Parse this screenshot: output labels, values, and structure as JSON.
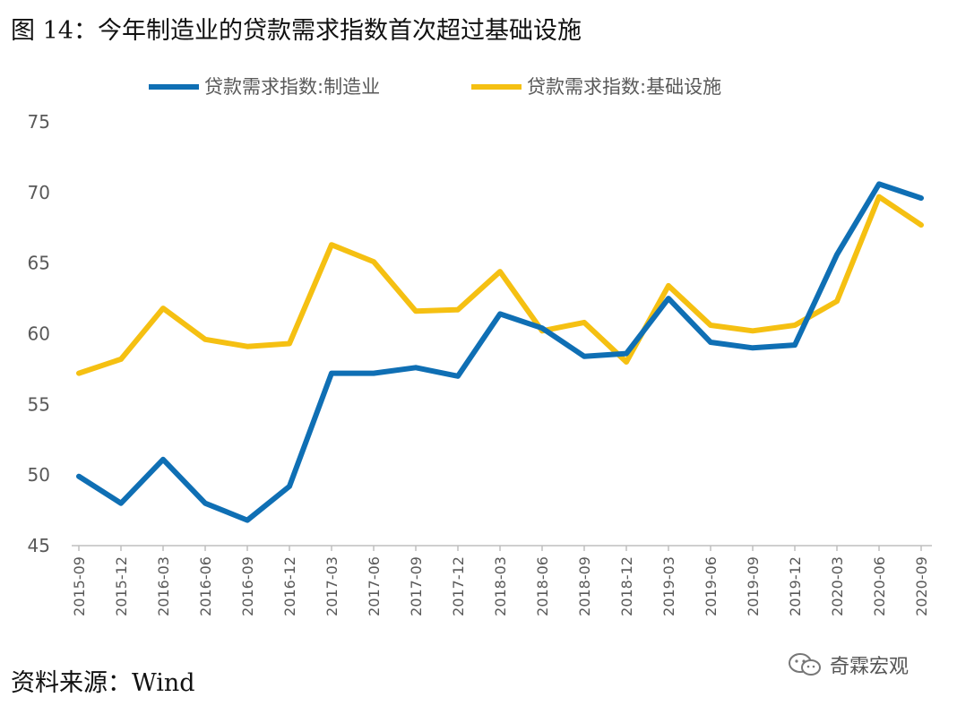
{
  "figure_title": "图 14：今年制造业的贷款需求指数首次超过基础设施",
  "source_text": "资料来源：Wind",
  "watermark": {
    "text": "奇霖宏观",
    "icon": "wechat-icon"
  },
  "colors": {
    "manufacturing": "#0F6FB4",
    "infrastructure": "#F5C012",
    "axis": "#BFBFBF",
    "text": "#595959"
  },
  "chart_data": {
    "type": "line",
    "title": "",
    "xlabel": "",
    "ylabel": "",
    "ylim": [
      45,
      75
    ],
    "yticks": [
      45,
      50,
      55,
      60,
      65,
      70,
      75
    ],
    "grid": false,
    "legend_position": "top",
    "x": [
      "2015-09",
      "2015-12",
      "2016-03",
      "2016-06",
      "2016-09",
      "2016-12",
      "2017-03",
      "2017-06",
      "2017-09",
      "2017-12",
      "2018-03",
      "2018-06",
      "2018-09",
      "2018-12",
      "2019-03",
      "2019-06",
      "2019-09",
      "2019-12",
      "2020-03",
      "2020-06",
      "2020-09"
    ],
    "series": [
      {
        "name": "贷款需求指数:制造业",
        "color": "#0F6FB4",
        "values": [
          49.9,
          48.0,
          51.1,
          48.0,
          46.8,
          49.2,
          57.2,
          57.2,
          57.6,
          57.0,
          61.4,
          60.4,
          58.4,
          58.6,
          62.5,
          59.4,
          59.0,
          59.2,
          65.6,
          70.6,
          69.6
        ]
      },
      {
        "name": "贷款需求指数:基础设施",
        "color": "#F5C012",
        "values": [
          57.2,
          58.2,
          61.8,
          59.6,
          59.1,
          59.3,
          66.3,
          65.1,
          61.6,
          61.7,
          64.4,
          60.2,
          60.8,
          58.0,
          63.4,
          60.6,
          60.2,
          60.6,
          62.3,
          69.7,
          67.7
        ]
      }
    ]
  }
}
